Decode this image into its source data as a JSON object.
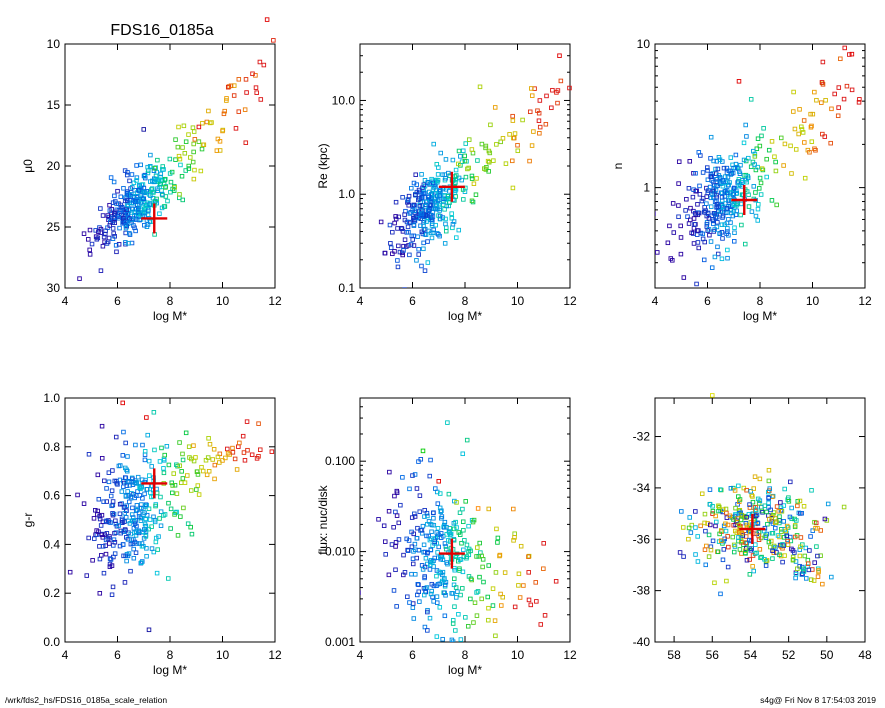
{
  "figure": {
    "title": "FDS16_0185a",
    "footer_left": "/wrk/fds2_hs/FDS16_0185a_scale_relation",
    "footer_right": "s4g@  Fri Nov  8 17:54:03 2019"
  },
  "chart_data": [
    {
      "id": "mu0",
      "type": "scatter",
      "title": "FDS16_0185a",
      "xlabel": "log M*",
      "ylabel": "μ0",
      "xlim": [
        4,
        12
      ],
      "ylim": [
        30,
        10
      ],
      "yscale": "linear",
      "xreverse": false,
      "xticks": [
        4,
        6,
        8,
        10,
        12
      ],
      "xtick_labels": [
        "4",
        "6",
        "8",
        "10",
        "12"
      ],
      "yticks": [
        10,
        15,
        20,
        25,
        30
      ],
      "ytick_labels": [
        "10",
        "15",
        "20",
        "25",
        "30"
      ],
      "cloud": {
        "x_center": 6.6,
        "y_center": 23.3,
        "x_spread": 0.8,
        "y_slope": -1.6,
        "y_scatter": 1.3,
        "n": 320
      },
      "tail": {
        "x_from": 8.0,
        "x_to": 11.5,
        "y_at_from": 21,
        "y_at_to": 11.5,
        "scatter": 1.3,
        "n": 60
      },
      "highlight": {
        "x": 7.4,
        "y": 24.3,
        "size": "large",
        "color": "#e00000"
      },
      "extra_points": [
        {
          "x": 9.1,
          "y": 16.8,
          "color": "#e00000"
        },
        {
          "x": 7.0,
          "y": 17.0,
          "color": "#1010a0"
        },
        {
          "x": 11.7,
          "y": 8.0,
          "color": "#e00000"
        }
      ]
    },
    {
      "id": "re",
      "type": "scatter",
      "xlabel": "log M*",
      "ylabel": "Re (kpc)",
      "xlim": [
        4,
        12
      ],
      "ylim": [
        0.1,
        40
      ],
      "yscale": "log",
      "xreverse": false,
      "xticks": [
        4,
        6,
        8,
        10,
        12
      ],
      "xtick_labels": [
        "4",
        "6",
        "8",
        "10",
        "12"
      ],
      "yticks": [
        0.1,
        1.0,
        10.0
      ],
      "ytick_labels": [
        "0.1",
        "1.0",
        "10.0"
      ],
      "cloud": {
        "x_center": 6.6,
        "y_center": 0.72,
        "x_spread": 0.8,
        "y_slope": 0.22,
        "y_scatter": 0.2,
        "n": 320
      },
      "tail": {
        "x_from": 8.0,
        "x_to": 11.6,
        "y_at_from": 1.4,
        "y_at_to": 15,
        "scatter": 0.2,
        "n": 60
      },
      "highlight": {
        "x": 7.5,
        "y": 1.2,
        "size": "large",
        "color": "#e00000"
      },
      "extra_points": [
        {
          "x": 11.6,
          "y": 30,
          "color": "#e00000"
        }
      ]
    },
    {
      "id": "n",
      "type": "scatter",
      "xlabel": "log M*",
      "ylabel": "n",
      "xlim": [
        4,
        12
      ],
      "ylim": [
        0.2,
        10
      ],
      "yscale": "log",
      "xreverse": false,
      "xticks": [
        4,
        6,
        8,
        10,
        12
      ],
      "xtick_labels": [
        "4",
        "6",
        "8",
        "10",
        "12"
      ],
      "yticks": [
        1,
        10
      ],
      "ytick_labels": [
        "1",
        "10"
      ],
      "cloud": {
        "x_center": 6.6,
        "y_center": 0.85,
        "x_spread": 0.8,
        "y_slope": 0.1,
        "y_scatter": 0.17,
        "n": 320
      },
      "tail": {
        "x_from": 8.0,
        "x_to": 11.6,
        "y_at_from": 1.2,
        "y_at_to": 6,
        "scatter": 0.17,
        "n": 60
      },
      "highlight": {
        "x": 7.4,
        "y": 0.82,
        "size": "large",
        "color": "#e00000"
      },
      "extra_points": [
        {
          "x": 7.2,
          "y": 5.5,
          "color": "#e00000"
        },
        {
          "x": 11.5,
          "y": 8.5,
          "color": "#e00000"
        }
      ]
    },
    {
      "id": "gr",
      "type": "scatter",
      "xlabel": "log M*",
      "ylabel": "g-r",
      "xlim": [
        4,
        12
      ],
      "ylim": [
        0.0,
        1.0
      ],
      "yscale": "linear",
      "xreverse": false,
      "xticks": [
        4,
        6,
        8,
        10,
        12
      ],
      "xtick_labels": [
        "4",
        "6",
        "8",
        "10",
        "12"
      ],
      "yticks": [
        0.0,
        0.2,
        0.4,
        0.6,
        0.8,
        1.0
      ],
      "ytick_labels": [
        "0.0",
        "0.2",
        "0.4",
        "0.6",
        "0.8",
        "1.0"
      ],
      "cloud": {
        "x_center": 6.6,
        "y_center": 0.52,
        "x_spread": 0.8,
        "y_slope": 0.03,
        "y_scatter": 0.14,
        "n": 320
      },
      "tail": {
        "x_from": 8.0,
        "x_to": 11.6,
        "y_at_from": 0.66,
        "y_at_to": 0.82,
        "scatter": 0.06,
        "n": 60
      },
      "highlight": {
        "x": 7.4,
        "y": 0.65,
        "size": "large",
        "color": "#e00000"
      },
      "extra_points": [
        {
          "x": 7.2,
          "y": 0.05,
          "color": "#1010a0"
        },
        {
          "x": 7.1,
          "y": 0.92,
          "color": "#e00000"
        },
        {
          "x": 6.2,
          "y": 0.98,
          "color": "#e00000"
        }
      ]
    },
    {
      "id": "flux",
      "type": "scatter",
      "xlabel": "log M*",
      "ylabel": "flux: nuc/disk",
      "xlim": [
        4,
        12
      ],
      "ylim": [
        0.001,
        0.5
      ],
      "yscale": "log",
      "xreverse": false,
      "xticks": [
        4,
        6,
        8,
        10,
        12
      ],
      "xtick_labels": [
        "4",
        "6",
        "8",
        "10",
        "12"
      ],
      "yticks": [
        0.001,
        0.01,
        0.1
      ],
      "ytick_labels": [
        "0.001",
        "0.010",
        "0.100"
      ],
      "cloud": {
        "x_center": 7.0,
        "y_center": 0.009,
        "x_spread": 0.9,
        "y_slope": -0.1,
        "y_scatter": 0.42,
        "n": 300
      },
      "tail": {
        "x_from": 8.0,
        "x_to": 11.0,
        "y_at_from": 0.006,
        "y_at_to": 0.004,
        "scatter": 0.35,
        "n": 40
      },
      "highlight": {
        "x": 7.5,
        "y": 0.0095,
        "size": "large",
        "color": "#e00000"
      },
      "extra_points": [
        {
          "x": 6.4,
          "y": 0.13,
          "color": "#00cc00"
        },
        {
          "x": 8.5,
          "y": 0.03,
          "color": "#ff8800"
        },
        {
          "x": 7.0,
          "y": 0.06,
          "color": "#e00000"
        }
      ]
    },
    {
      "id": "coord",
      "type": "scatter",
      "xlabel": "",
      "ylabel": "",
      "xlim": [
        59,
        48
      ],
      "ylim": [
        -40,
        -30.5
      ],
      "yscale": "linear",
      "xreverse": true,
      "xticks": [
        58,
        56,
        54,
        52,
        50,
        48
      ],
      "xtick_labels": [
        "58",
        "56",
        "54",
        "52",
        "50",
        "48"
      ],
      "yticks": [
        -40,
        -38,
        -36,
        -34,
        -32
      ],
      "ytick_labels": [
        "-40",
        "-38",
        "-36",
        "-34",
        "-32"
      ],
      "cloud": {
        "x_center": 53.8,
        "y_center": -35.5,
        "x_spread": 1.6,
        "y_slope": 0.0,
        "y_scatter": 0.85,
        "n": 340
      },
      "tail": {
        "x_from": 52,
        "x_to": 50,
        "y_at_from": -36.8,
        "y_at_to": -37.6,
        "scatter": 0.4,
        "n": 30
      },
      "highlight": {
        "x": 53.9,
        "y": -35.6,
        "size": "large",
        "color": "#e00000"
      },
      "extra_points": [
        {
          "x": 56.0,
          "y": -30.4,
          "color": "#dddd00"
        }
      ]
    }
  ]
}
